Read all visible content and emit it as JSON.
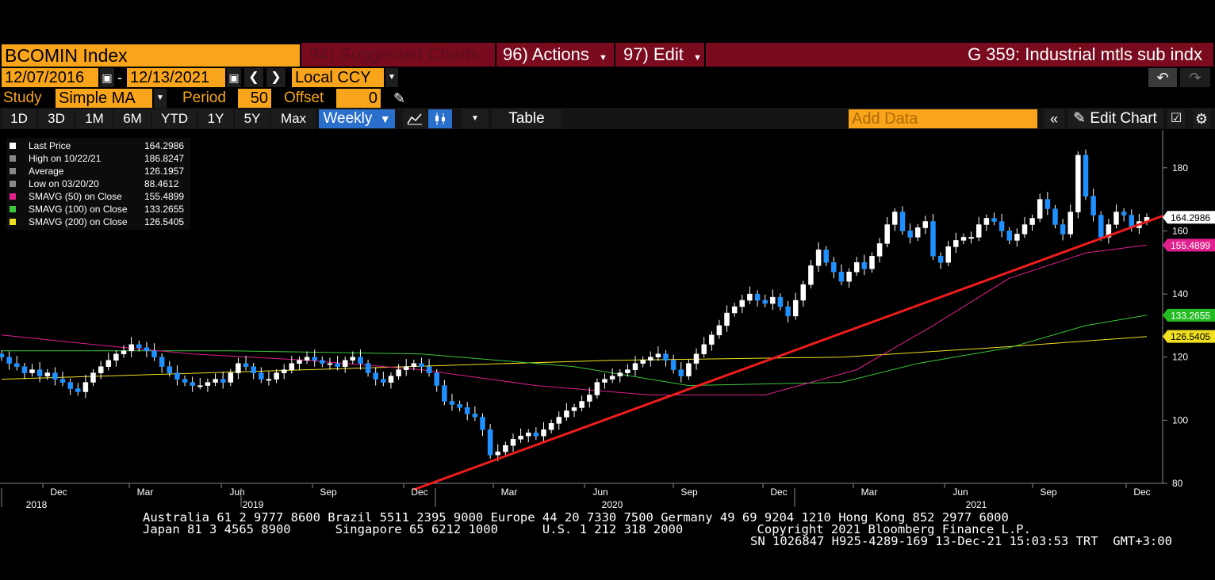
{
  "header": {
    "security": "BCOMIN Index",
    "suggested": "94) Suggested Charts",
    "actions": "96) Actions",
    "edit": "97) Edit",
    "title": "G 359: Industrial mtls sub indx"
  },
  "dates": {
    "start": "12/07/2016",
    "end": "12/13/2021",
    "currency": "Local CCY"
  },
  "study": {
    "label": "Study",
    "type": "Simple MA",
    "period_label": "Period",
    "period": "50",
    "offset_label": "Offset",
    "offset": "0"
  },
  "toolbar": {
    "ranges": [
      "1D",
      "3D",
      "1M",
      "6M",
      "YTD",
      "1Y",
      "5Y",
      "Max"
    ],
    "frequency": "Weekly",
    "table": "Table",
    "add_data_placeholder": "Add Data",
    "edit_chart": "Edit Chart"
  },
  "legend": [
    {
      "label": "Last Price",
      "value": "164.2986",
      "color": "#ffffff"
    },
    {
      "label": "High on 10/22/21",
      "value": "186.8247",
      "color": "#888888"
    },
    {
      "label": "Average",
      "value": "126.1957",
      "color": "#888888"
    },
    {
      "label": "Low on 03/20/20",
      "value": "88.4612",
      "color": "#888888"
    },
    {
      "label": "SMAVG (50)  on Close",
      "value": "155.4899",
      "color": "#e0208c"
    },
    {
      "label": "SMAVG (100)  on Close",
      "value": "133.2655",
      "color": "#3cc83c"
    },
    {
      "label": "SMAVG (200)  on Close",
      "value": "126.5405",
      "color": "#f0e020"
    }
  ],
  "price_tags": [
    {
      "value": "164.2986",
      "bg": "#ffffff",
      "fg": "#000000"
    },
    {
      "value": "155.4899",
      "bg": "#e0208c",
      "fg": "#ffffff"
    },
    {
      "value": "133.2655",
      "bg": "#22bb22",
      "fg": "#ffffff"
    },
    {
      "value": "126.5405",
      "bg": "#f0e020",
      "fg": "#000000"
    }
  ],
  "chart_data": {
    "type": "candlestick",
    "frequency": "weekly",
    "ylim": [
      80,
      192
    ],
    "yticks": [
      80,
      100,
      120,
      140,
      160,
      180
    ],
    "grid": false,
    "legend_position": "top-left",
    "month_labels": [
      "Dec",
      "Mar",
      "Jun",
      "Sep",
      "Dec",
      "Mar",
      "Jun",
      "Sep",
      "Dec",
      "Mar",
      "Jun",
      "Sep",
      "Dec"
    ],
    "year_labels": [
      "2018",
      "2019",
      "2020",
      "2021"
    ],
    "closes": [
      120,
      118,
      117,
      115,
      116,
      114,
      115,
      113,
      112,
      110,
      109,
      112,
      115,
      117,
      119,
      121,
      122,
      124,
      123,
      122,
      120,
      117,
      115,
      113,
      112,
      111,
      111,
      112,
      113,
      112,
      115,
      118,
      117,
      115,
      113,
      113,
      115,
      116,
      118,
      119,
      120,
      119,
      118,
      118,
      117,
      119,
      120,
      118,
      115,
      113,
      112,
      114,
      116,
      117,
      118,
      117,
      115,
      111,
      106,
      105,
      104,
      102,
      101,
      97,
      89,
      90,
      92,
      94,
      95,
      96,
      95,
      97,
      99,
      101,
      103,
      104,
      106,
      108,
      112,
      113,
      114,
      115,
      116,
      118,
      119,
      120,
      121,
      119,
      116,
      114,
      118,
      121,
      124,
      127,
      130,
      134,
      136,
      138,
      140,
      138,
      137,
      139,
      136,
      133,
      138,
      143,
      149,
      154,
      150,
      147,
      144,
      147,
      150,
      148,
      152,
      156,
      162,
      166,
      160,
      158,
      161,
      163,
      152,
      150,
      155,
      157,
      158,
      158,
      162,
      164,
      163,
      160,
      157,
      159,
      162,
      164,
      170,
      167,
      162,
      159,
      166,
      184,
      171,
      165,
      158,
      162,
      166,
      165,
      161,
      163,
      164.3
    ],
    "sma50_points": [
      [
        0,
        127
      ],
      [
        12,
        124
      ],
      [
        25,
        121
      ],
      [
        40,
        119
      ],
      [
        55,
        116
      ],
      [
        70,
        111
      ],
      [
        85,
        108
      ],
      [
        100,
        108
      ],
      [
        112,
        116
      ],
      [
        122,
        130
      ],
      [
        132,
        145
      ],
      [
        142,
        153
      ],
      [
        150,
        155.5
      ]
    ],
    "sma100_points": [
      [
        0,
        122
      ],
      [
        30,
        122
      ],
      [
        55,
        121
      ],
      [
        75,
        117
      ],
      [
        90,
        111
      ],
      [
        110,
        112
      ],
      [
        120,
        118
      ],
      [
        132,
        123
      ],
      [
        142,
        130
      ],
      [
        150,
        133.3
      ]
    ],
    "sma200_points": [
      [
        0,
        113
      ],
      [
        40,
        116
      ],
      [
        80,
        119
      ],
      [
        110,
        120
      ],
      [
        130,
        123
      ],
      [
        150,
        126.5
      ]
    ],
    "trendline": [
      [
        54,
        78
      ],
      [
        150,
        164
      ]
    ]
  },
  "footer": {
    "line1": "Australia 61 2 9777 8600 Brazil 5511 2395 9000 Europe 44 20 7330 7500 Germany 49 69 9204 1210 Hong Kong 852 2977 6000",
    "line2": "Japan 81 3 4565 8900      Singapore 65 6212 1000      U.S. 1 212 318 2000          Copyright 2021 Bloomberg Finance L.P.",
    "line3": "SN 1026847 H925-4289-169 13-Dec-21 15:03:53 TRT  GMT+3:00"
  }
}
